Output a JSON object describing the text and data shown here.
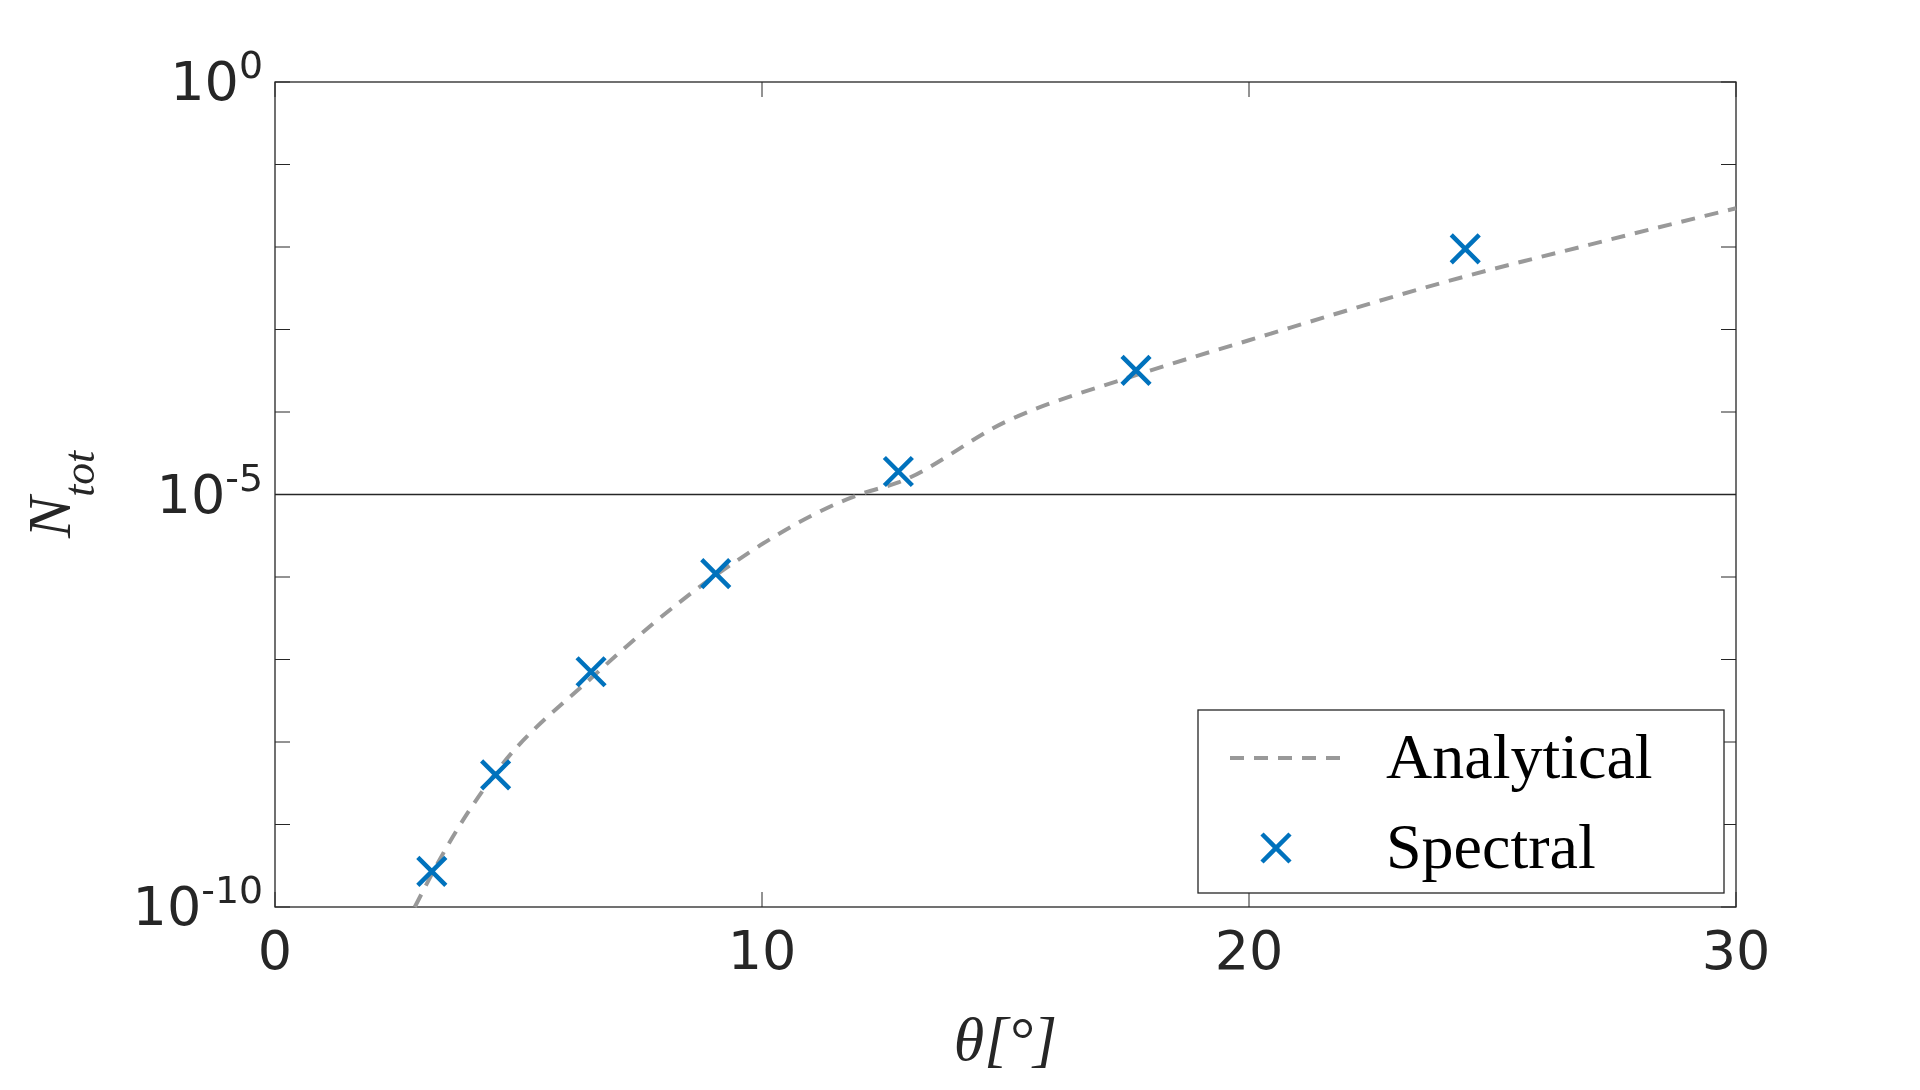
{
  "chart_data": {
    "type": "line",
    "xlabel": "θ[°]",
    "ylabel": "N$_{tot}$",
    "log": "y",
    "xlim": [
      0,
      30
    ],
    "xticks": [
      0,
      10,
      20,
      30
    ],
    "ylim": [
      1e-10,
      1
    ],
    "yticks": [
      {
        "value": 1e-10,
        "label": "10$^{-10}$"
      },
      {
        "value": 1e-09,
        "label": null
      },
      {
        "value": 1e-08,
        "label": null
      },
      {
        "value": 1e-07,
        "label": null
      },
      {
        "value": 1e-06,
        "label": null
      },
      {
        "value": 1e-05,
        "label": "10$^{-5}$"
      },
      {
        "value": 0.0001,
        "label": null
      },
      {
        "value": 0.001,
        "label": null
      },
      {
        "value": 0.01,
        "label": null
      },
      {
        "value": 0.1,
        "label": null
      },
      {
        "value": 1,
        "label": "10$^{0}$"
      }
    ],
    "grid": false,
    "legend": "bottom right",
    "ref_lines": [
      {
        "axis": "y",
        "value": 1e-05,
        "color": "#262626"
      }
    ],
    "series": [
      {
        "name": "Analytical",
        "color": "#999999",
        "line_style": "dashed",
        "marker": "none",
        "x": [
          2.87,
          3.5,
          4.5,
          6.5,
          9,
          12,
          12.8,
          15,
          17.68,
          20,
          24.44,
          27,
          30
        ],
        "values": [
          1e-10,
          5e-10,
          4e-09,
          6e-08,
          1e-06,
          1e-05,
          1.4e-05,
          7.6e-05,
          0.00028,
          0.00074,
          0.0044,
          0.0107,
          0.0295
        ]
      },
      {
        "name": "Spectral",
        "type": "scatter",
        "color": "#0072bd",
        "marker": "cross",
        "x": [
          3.22,
          4.53,
          6.49,
          9.05,
          12.8,
          17.68,
          24.44
        ],
        "values": [
          2.7e-10,
          4e-09,
          7.1e-08,
          1.1e-06,
          1.9e-05,
          0.00032,
          0.0095
        ]
      }
    ]
  }
}
